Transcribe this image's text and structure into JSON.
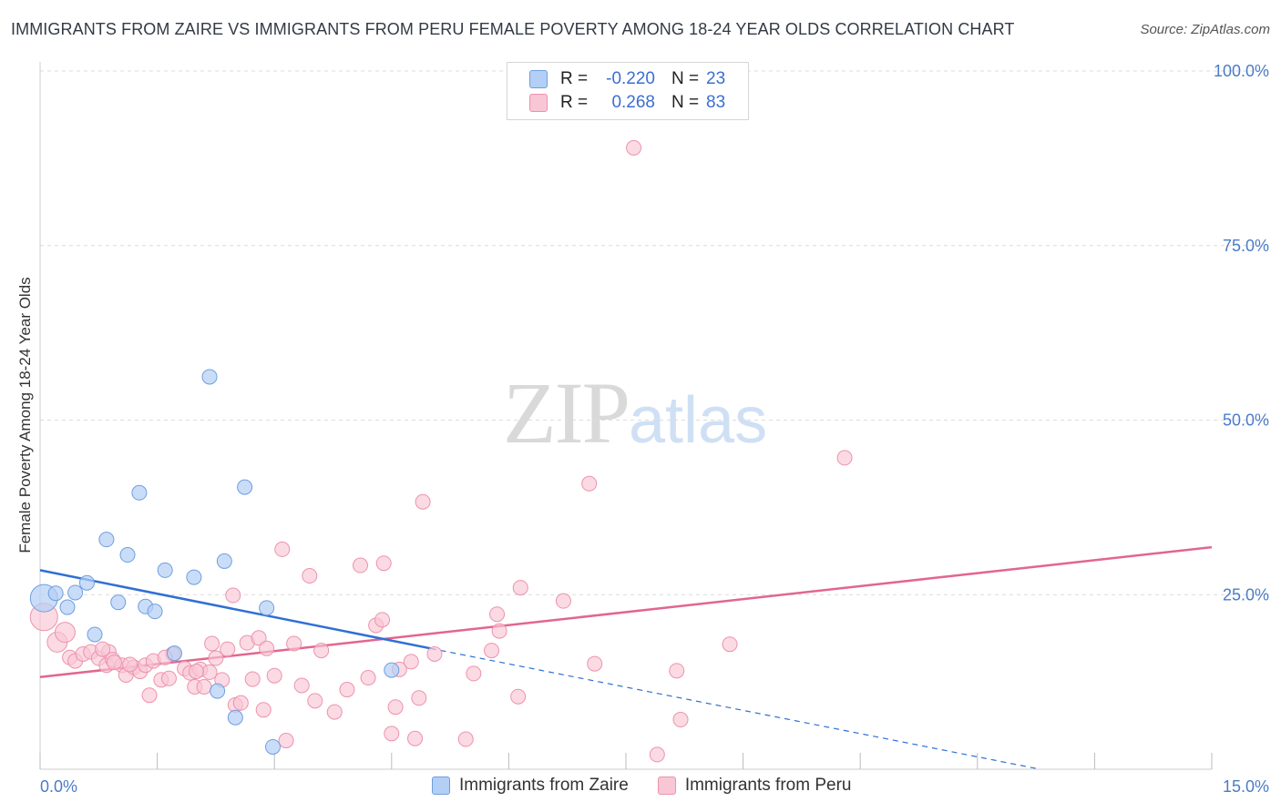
{
  "title": "IMMIGRANTS FROM ZAIRE VS IMMIGRANTS FROM PERU FEMALE POVERTY AMONG 18-24 YEAR OLDS CORRELATION CHART",
  "source": "Source: ZipAtlas.com",
  "watermark": {
    "zip": "ZIP",
    "atlas": "atlas"
  },
  "legend": {
    "rows": [
      {
        "r_label": "R =",
        "r_value": "-0.220",
        "n_label": "N =",
        "n_value": "23",
        "fill": "#b3cff5",
        "stroke": "#6e9ee0"
      },
      {
        "r_label": "R =",
        "r_value": "0.268",
        "n_label": "N =",
        "n_value": "83",
        "fill": "#f9c6d5",
        "stroke": "#ec93ad"
      }
    ]
  },
  "bottom_legend": {
    "zaire": "Immigrants from Zaire",
    "peru": "Immigrants from Peru"
  },
  "chart_data": {
    "type": "scatter",
    "title": "IMMIGRANTS FROM ZAIRE VS IMMIGRANTS FROM PERU FEMALE POVERTY AMONG 18-24 YEAR OLDS CORRELATION CHART",
    "xlabel": "",
    "ylabel": "Female Poverty Among 18-24 Year Olds",
    "xlim": [
      0,
      15
    ],
    "ylim": [
      0,
      100
    ],
    "x_tick_labels": [
      {
        "value": 0,
        "label": "0.0%"
      },
      {
        "value": 15,
        "label": "15.0%"
      }
    ],
    "y_tick_labels": [
      {
        "value": 25,
        "label": "25.0%"
      },
      {
        "value": 50,
        "label": "50.0%"
      },
      {
        "value": 75,
        "label": "75.0%"
      },
      {
        "value": 100,
        "label": "100.0%"
      }
    ],
    "grid": true,
    "colors": {
      "zaire_fill": "#b3cff5",
      "zaire_stroke": "#6e9ee0",
      "zaire_line": "#2f6fd4",
      "peru_fill": "#f9c6d5",
      "peru_stroke": "#ec93ad",
      "peru_line": "#e2668f"
    },
    "series": [
      {
        "name": "Immigrants from Zaire",
        "trend": {
          "x0": 0,
          "y0": 28.5,
          "x1": 5.0,
          "y1": 17.3,
          "dash_to_x": 12.8,
          "dash_to_y": 0
        },
        "points": [
          {
            "x": 0.05,
            "y": 24.5,
            "s": 3
          },
          {
            "x": 0.2,
            "y": 25.2,
            "s": 1
          },
          {
            "x": 0.35,
            "y": 23.2,
            "s": 1
          },
          {
            "x": 0.45,
            "y": 25.3,
            "s": 1
          },
          {
            "x": 0.6,
            "y": 26.7,
            "s": 1
          },
          {
            "x": 0.7,
            "y": 19.3,
            "s": 1
          },
          {
            "x": 0.85,
            "y": 32.9,
            "s": 1
          },
          {
            "x": 1.0,
            "y": 23.9,
            "s": 1
          },
          {
            "x": 1.12,
            "y": 30.7,
            "s": 1
          },
          {
            "x": 1.27,
            "y": 39.6,
            "s": 1
          },
          {
            "x": 1.35,
            "y": 23.3,
            "s": 1
          },
          {
            "x": 1.47,
            "y": 22.6,
            "s": 1
          },
          {
            "x": 1.6,
            "y": 28.5,
            "s": 1
          },
          {
            "x": 1.72,
            "y": 16.6,
            "s": 1
          },
          {
            "x": 1.97,
            "y": 27.5,
            "s": 1
          },
          {
            "x": 2.17,
            "y": 56.2,
            "s": 1
          },
          {
            "x": 2.27,
            "y": 11.2,
            "s": 1
          },
          {
            "x": 2.36,
            "y": 29.8,
            "s": 1
          },
          {
            "x": 2.5,
            "y": 7.4,
            "s": 1
          },
          {
            "x": 2.62,
            "y": 40.4,
            "s": 1
          },
          {
            "x": 2.9,
            "y": 23.1,
            "s": 1
          },
          {
            "x": 2.98,
            "y": 3.2,
            "s": 1
          },
          {
            "x": 4.5,
            "y": 14.2,
            "s": 1
          }
        ]
      },
      {
        "name": "Immigrants from Peru",
        "trend": {
          "x0": 0,
          "y0": 13.2,
          "x1": 15.0,
          "y1": 31.8
        },
        "points": [
          {
            "x": 0.05,
            "y": 21.8,
            "s": 3
          },
          {
            "x": 0.22,
            "y": 18.2,
            "s": 2
          },
          {
            "x": 0.32,
            "y": 19.6,
            "s": 2
          },
          {
            "x": 0.38,
            "y": 16.0,
            "s": 1
          },
          {
            "x": 0.45,
            "y": 15.5,
            "s": 1
          },
          {
            "x": 0.55,
            "y": 16.5,
            "s": 1
          },
          {
            "x": 0.65,
            "y": 16.8,
            "s": 1
          },
          {
            "x": 0.75,
            "y": 15.9,
            "s": 1
          },
          {
            "x": 0.85,
            "y": 14.9,
            "s": 1
          },
          {
            "x": 0.88,
            "y": 16.8,
            "s": 1
          },
          {
            "x": 0.93,
            "y": 15.7,
            "s": 1
          },
          {
            "x": 1.05,
            "y": 14.9,
            "s": 1
          },
          {
            "x": 1.1,
            "y": 13.5,
            "s": 1
          },
          {
            "x": 1.2,
            "y": 14.6,
            "s": 1
          },
          {
            "x": 1.28,
            "y": 14.0,
            "s": 1
          },
          {
            "x": 1.35,
            "y": 14.9,
            "s": 1
          },
          {
            "x": 1.4,
            "y": 10.6,
            "s": 1
          },
          {
            "x": 1.45,
            "y": 15.5,
            "s": 1
          },
          {
            "x": 1.55,
            "y": 12.8,
            "s": 1
          },
          {
            "x": 1.65,
            "y": 13.0,
            "s": 1
          },
          {
            "x": 1.7,
            "y": 16.5,
            "s": 1
          },
          {
            "x": 1.85,
            "y": 14.4,
            "s": 1
          },
          {
            "x": 1.92,
            "y": 13.8,
            "s": 1
          },
          {
            "x": 1.98,
            "y": 11.8,
            "s": 1
          },
          {
            "x": 2.05,
            "y": 14.3,
            "s": 1
          },
          {
            "x": 2.1,
            "y": 11.8,
            "s": 1
          },
          {
            "x": 2.17,
            "y": 13.9,
            "s": 1
          },
          {
            "x": 2.2,
            "y": 18.0,
            "s": 1
          },
          {
            "x": 2.25,
            "y": 15.9,
            "s": 1
          },
          {
            "x": 2.33,
            "y": 12.8,
            "s": 1
          },
          {
            "x": 2.4,
            "y": 17.2,
            "s": 1
          },
          {
            "x": 2.47,
            "y": 24.9,
            "s": 1
          },
          {
            "x": 2.5,
            "y": 9.2,
            "s": 1
          },
          {
            "x": 2.57,
            "y": 9.5,
            "s": 1
          },
          {
            "x": 2.65,
            "y": 18.1,
            "s": 1
          },
          {
            "x": 2.72,
            "y": 12.9,
            "s": 1
          },
          {
            "x": 2.8,
            "y": 18.8,
            "s": 1
          },
          {
            "x": 2.86,
            "y": 8.5,
            "s": 1
          },
          {
            "x": 2.9,
            "y": 17.3,
            "s": 1
          },
          {
            "x": 3.0,
            "y": 13.4,
            "s": 1
          },
          {
            "x": 3.1,
            "y": 31.5,
            "s": 1
          },
          {
            "x": 3.15,
            "y": 4.1,
            "s": 1
          },
          {
            "x": 3.25,
            "y": 18.0,
            "s": 1
          },
          {
            "x": 3.35,
            "y": 12.0,
            "s": 1
          },
          {
            "x": 3.45,
            "y": 27.7,
            "s": 1
          },
          {
            "x": 3.52,
            "y": 9.8,
            "s": 1
          },
          {
            "x": 3.6,
            "y": 17.0,
            "s": 1
          },
          {
            "x": 3.77,
            "y": 8.2,
            "s": 1
          },
          {
            "x": 3.93,
            "y": 11.4,
            "s": 1
          },
          {
            "x": 4.1,
            "y": 29.2,
            "s": 1
          },
          {
            "x": 4.2,
            "y": 13.1,
            "s": 1
          },
          {
            "x": 4.3,
            "y": 20.6,
            "s": 1
          },
          {
            "x": 4.38,
            "y": 21.4,
            "s": 1
          },
          {
            "x": 4.4,
            "y": 29.5,
            "s": 1
          },
          {
            "x": 4.5,
            "y": 5.1,
            "s": 1
          },
          {
            "x": 4.55,
            "y": 8.9,
            "s": 1
          },
          {
            "x": 4.6,
            "y": 14.3,
            "s": 1
          },
          {
            "x": 4.75,
            "y": 15.4,
            "s": 1
          },
          {
            "x": 4.8,
            "y": 4.4,
            "s": 1
          },
          {
            "x": 4.85,
            "y": 10.2,
            "s": 1
          },
          {
            "x": 4.9,
            "y": 38.3,
            "s": 1
          },
          {
            "x": 5.05,
            "y": 16.5,
            "s": 1
          },
          {
            "x": 5.45,
            "y": 4.3,
            "s": 1
          },
          {
            "x": 5.55,
            "y": 13.7,
            "s": 1
          },
          {
            "x": 5.78,
            "y": 17.0,
            "s": 1
          },
          {
            "x": 5.85,
            "y": 22.2,
            "s": 1
          },
          {
            "x": 5.88,
            "y": 19.8,
            "s": 1
          },
          {
            "x": 6.12,
            "y": 10.4,
            "s": 1
          },
          {
            "x": 6.15,
            "y": 26.0,
            "s": 1
          },
          {
            "x": 6.7,
            "y": 24.1,
            "s": 1
          },
          {
            "x": 7.03,
            "y": 40.9,
            "s": 1
          },
          {
            "x": 7.1,
            "y": 15.1,
            "s": 1
          },
          {
            "x": 7.6,
            "y": 89.0,
            "s": 1
          },
          {
            "x": 7.9,
            "y": 2.1,
            "s": 1
          },
          {
            "x": 8.15,
            "y": 14.1,
            "s": 1
          },
          {
            "x": 8.2,
            "y": 7.1,
            "s": 1
          },
          {
            "x": 8.83,
            "y": 17.9,
            "s": 1
          },
          {
            "x": 10.3,
            "y": 44.6,
            "s": 1
          },
          {
            "x": 0.8,
            "y": 17.2,
            "s": 1
          },
          {
            "x": 1.15,
            "y": 15.0,
            "s": 1
          },
          {
            "x": 2.0,
            "y": 14.0,
            "s": 1
          },
          {
            "x": 1.6,
            "y": 16.0,
            "s": 1
          },
          {
            "x": 0.95,
            "y": 15.3,
            "s": 1
          }
        ]
      }
    ]
  }
}
